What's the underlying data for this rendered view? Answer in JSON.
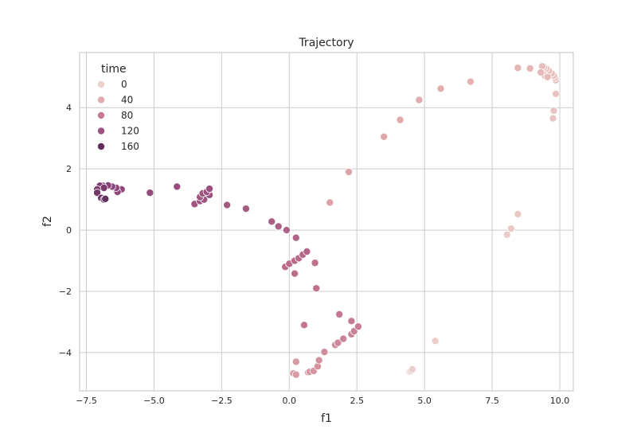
{
  "chart_data": {
    "type": "scatter",
    "title": "Trajectory",
    "xlabel": "f1",
    "ylabel": "f2",
    "xlim": [
      -7.75,
      10.5
    ],
    "ylim": [
      -5.25,
      5.8
    ],
    "xticks": [
      -7.5,
      -5.0,
      -2.5,
      0.0,
      2.5,
      5.0,
      7.5,
      10.0
    ],
    "xtick_labels": [
      "−7.5",
      "−5.0",
      "−2.5",
      "0.0",
      "2.5",
      "5.0",
      "7.5",
      "10.0"
    ],
    "yticks": [
      -4,
      -2,
      0,
      2,
      4
    ],
    "ytick_labels": [
      "−4",
      "−2",
      "0",
      "2",
      "4"
    ],
    "grid": true,
    "legend": {
      "title": "time",
      "placement": "top-left",
      "entries": [
        {
          "label": "0",
          "value": 0
        },
        {
          "label": "40",
          "value": 40
        },
        {
          "label": "80",
          "value": 80
        },
        {
          "label": "120",
          "value": 120
        },
        {
          "label": "160",
          "value": 160
        }
      ]
    },
    "hue_range": [
      0,
      180
    ],
    "hue_colors": [
      "#edd1cb",
      "#e0a8a8",
      "#bd6e8c",
      "#8d4579",
      "#3c1e47"
    ],
    "points": [
      {
        "x": 4.45,
        "y": -4.62,
        "t": 0
      },
      {
        "x": 4.5,
        "y": -4.6,
        "t": 1
      },
      {
        "x": 4.55,
        "y": -4.55,
        "t": 2
      },
      {
        "x": 5.4,
        "y": -3.62,
        "t": 4
      },
      {
        "x": 8.05,
        "y": -0.15,
        "t": 7
      },
      {
        "x": 8.2,
        "y": 0.05,
        "t": 8
      },
      {
        "x": 8.45,
        "y": 0.52,
        "t": 9
      },
      {
        "x": 9.75,
        "y": 3.65,
        "t": 12
      },
      {
        "x": 9.78,
        "y": 3.9,
        "t": 13
      },
      {
        "x": 9.85,
        "y": 4.45,
        "t": 14
      },
      {
        "x": 9.85,
        "y": 4.9,
        "t": 15
      },
      {
        "x": 9.82,
        "y": 4.98,
        "t": 16
      },
      {
        "x": 9.78,
        "y": 5.05,
        "t": 17
      },
      {
        "x": 9.7,
        "y": 5.12,
        "t": 18
      },
      {
        "x": 9.6,
        "y": 5.2,
        "t": 19
      },
      {
        "x": 9.5,
        "y": 5.28,
        "t": 20
      },
      {
        "x": 9.42,
        "y": 5.32,
        "t": 21
      },
      {
        "x": 9.35,
        "y": 5.35,
        "t": 22
      },
      {
        "x": 9.45,
        "y": 5.05,
        "t": 23
      },
      {
        "x": 9.55,
        "y": 5.0,
        "t": 24
      },
      {
        "x": 9.3,
        "y": 5.15,
        "t": 25
      },
      {
        "x": 8.9,
        "y": 5.28,
        "t": 28
      },
      {
        "x": 8.45,
        "y": 5.3,
        "t": 30
      },
      {
        "x": 6.7,
        "y": 4.85,
        "t": 34
      },
      {
        "x": 5.6,
        "y": 4.62,
        "t": 37
      },
      {
        "x": 4.8,
        "y": 4.25,
        "t": 40
      },
      {
        "x": 4.1,
        "y": 3.6,
        "t": 42
      },
      {
        "x": 3.5,
        "y": 3.05,
        "t": 44
      },
      {
        "x": 2.2,
        "y": 1.9,
        "t": 47
      },
      {
        "x": 1.5,
        "y": 0.9,
        "t": 50
      },
      {
        "x": 0.15,
        "y": -4.68,
        "t": 54
      },
      {
        "x": 0.25,
        "y": -4.72,
        "t": 55
      },
      {
        "x": 0.25,
        "y": -4.3,
        "t": 56
      },
      {
        "x": 0.7,
        "y": -4.65,
        "t": 57
      },
      {
        "x": 0.75,
        "y": -4.63,
        "t": 58
      },
      {
        "x": 0.9,
        "y": -4.6,
        "t": 60
      },
      {
        "x": 1.05,
        "y": -4.45,
        "t": 62
      },
      {
        "x": 1.1,
        "y": -4.25,
        "t": 64
      },
      {
        "x": 1.3,
        "y": -3.98,
        "t": 66
      },
      {
        "x": 1.7,
        "y": -3.75,
        "t": 68
      },
      {
        "x": 1.8,
        "y": -3.68,
        "t": 70
      },
      {
        "x": 2.0,
        "y": -3.55,
        "t": 72
      },
      {
        "x": 2.3,
        "y": -3.4,
        "t": 74
      },
      {
        "x": 2.4,
        "y": -3.3,
        "t": 76
      },
      {
        "x": 2.55,
        "y": -3.15,
        "t": 78
      },
      {
        "x": 2.3,
        "y": -2.97,
        "t": 80
      },
      {
        "x": 1.85,
        "y": -2.75,
        "t": 82
      },
      {
        "x": 0.55,
        "y": -3.1,
        "t": 84
      },
      {
        "x": 1.0,
        "y": -1.9,
        "t": 86
      },
      {
        "x": 0.95,
        "y": -1.07,
        "t": 88
      },
      {
        "x": 0.2,
        "y": -1.42,
        "t": 90
      },
      {
        "x": -0.15,
        "y": -1.2,
        "t": 92
      },
      {
        "x": 0.0,
        "y": -1.1,
        "t": 93
      },
      {
        "x": 0.2,
        "y": -1.0,
        "t": 94
      },
      {
        "x": 0.35,
        "y": -0.92,
        "t": 95
      },
      {
        "x": 0.5,
        "y": -0.8,
        "t": 97
      },
      {
        "x": 0.65,
        "y": -0.7,
        "t": 99
      },
      {
        "x": 0.25,
        "y": -0.25,
        "t": 101
      },
      {
        "x": -0.1,
        "y": 0.0,
        "t": 103
      },
      {
        "x": -0.4,
        "y": 0.12,
        "t": 105
      },
      {
        "x": -0.65,
        "y": 0.28,
        "t": 107
      },
      {
        "x": -1.6,
        "y": 0.7,
        "t": 110
      },
      {
        "x": -2.3,
        "y": 0.82,
        "t": 113
      },
      {
        "x": -3.5,
        "y": 0.85,
        "t": 116
      },
      {
        "x": -3.3,
        "y": 0.95,
        "t": 117
      },
      {
        "x": -3.15,
        "y": 1.0,
        "t": 118
      },
      {
        "x": -3.3,
        "y": 1.08,
        "t": 119
      },
      {
        "x": -3.2,
        "y": 1.2,
        "t": 120
      },
      {
        "x": -2.95,
        "y": 1.15,
        "t": 121
      },
      {
        "x": -3.05,
        "y": 1.25,
        "t": 122
      },
      {
        "x": -2.95,
        "y": 1.35,
        "t": 123
      },
      {
        "x": -4.15,
        "y": 1.42,
        "t": 126
      },
      {
        "x": -5.15,
        "y": 1.22,
        "t": 129
      },
      {
        "x": -6.2,
        "y": 1.33,
        "t": 132
      },
      {
        "x": -6.35,
        "y": 1.25,
        "t": 133
      },
      {
        "x": -6.4,
        "y": 1.38,
        "t": 134
      },
      {
        "x": -6.55,
        "y": 1.42,
        "t": 136
      },
      {
        "x": -6.7,
        "y": 1.46,
        "t": 138
      },
      {
        "x": -6.9,
        "y": 1.45,
        "t": 140
      },
      {
        "x": -7.05,
        "y": 1.4,
        "t": 142
      },
      {
        "x": -7.0,
        "y": 1.45,
        "t": 144
      },
      {
        "x": -6.85,
        "y": 1.38,
        "t": 146
      },
      {
        "x": -7.1,
        "y": 1.33,
        "t": 148
      },
      {
        "x": -7.1,
        "y": 1.22,
        "t": 150
      },
      {
        "x": -6.95,
        "y": 1.05,
        "t": 152
      },
      {
        "x": -6.85,
        "y": 1.0,
        "t": 155
      },
      {
        "x": -6.8,
        "y": 1.02,
        "t": 158
      }
    ]
  }
}
